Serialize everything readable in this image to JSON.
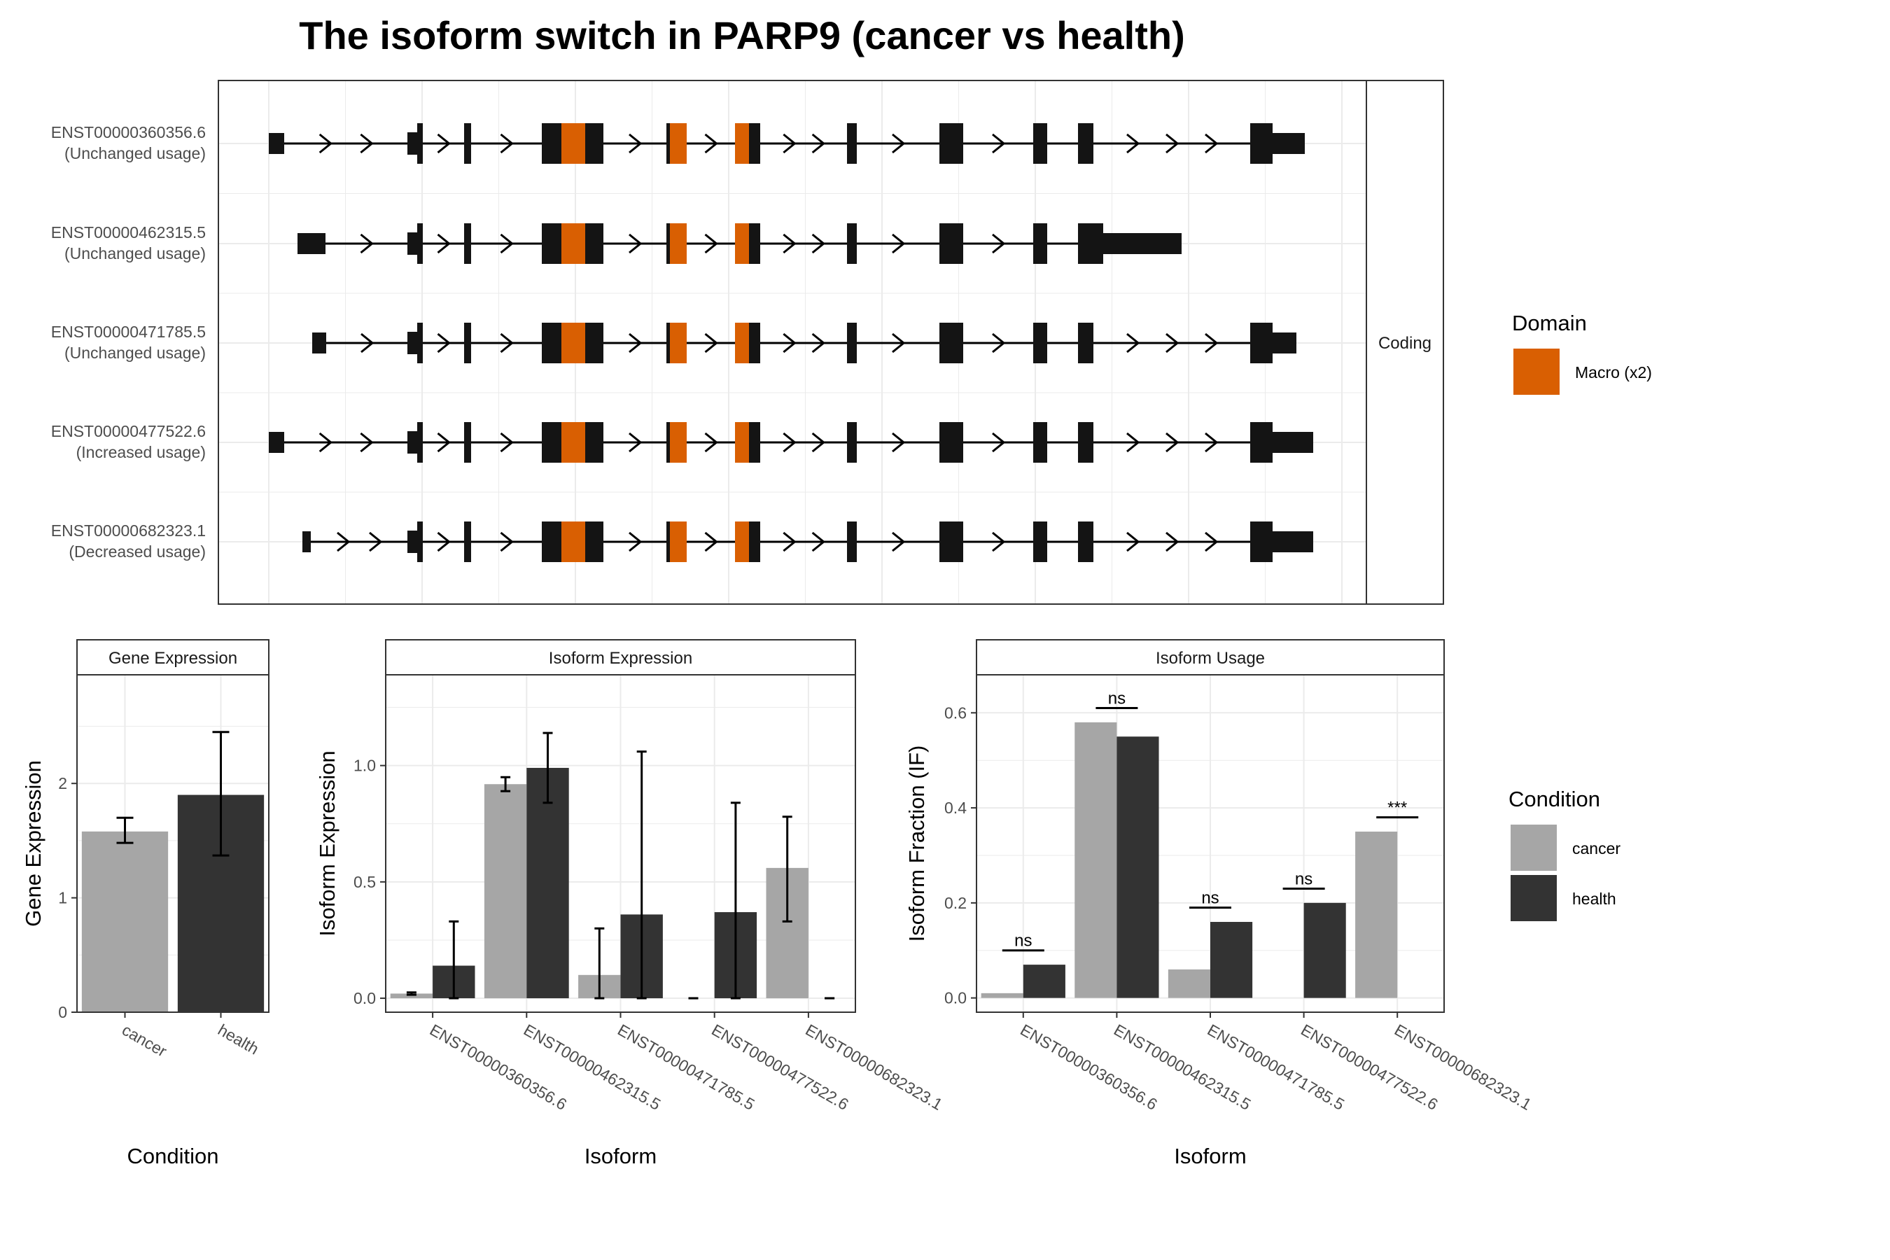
{
  "title": "The isoform switch in PARP9 (cancer vs health)",
  "colors": {
    "cancer": "#a6a6a6",
    "health": "#333333",
    "exon": "#141414",
    "domain": "#d95f02",
    "grid": "#ebebeb",
    "border": "#333333"
  },
  "structure": {
    "facet_label": "Coding",
    "isoforms": [
      {
        "id": "ENST00000360356.6",
        "usage": "(Unchanged usage)"
      },
      {
        "id": "ENST00000462315.5",
        "usage": "(Unchanged usage)"
      },
      {
        "id": "ENST00000471785.5",
        "usage": "(Unchanged usage)"
      },
      {
        "id": "ENST00000477522.6",
        "usage": "(Increased usage)"
      },
      {
        "id": "ENST00000682323.1",
        "usage": "(Decreased usage)"
      }
    ],
    "domain_legend": {
      "title": "Domain",
      "entries": [
        "Macro (x2)"
      ]
    }
  },
  "condition_legend": {
    "title": "Condition",
    "entries": [
      "cancer",
      "health"
    ]
  },
  "chart_data": [
    {
      "type": "bar",
      "strip": "Gene Expression",
      "xlabel": "Condition",
      "ylabel": "Gene Expression",
      "categories": [
        "cancer",
        "health"
      ],
      "values": [
        1.58,
        1.9
      ],
      "error_low": [
        1.48,
        1.37
      ],
      "error_high": [
        1.7,
        2.45
      ],
      "ylim": [
        0,
        2.95
      ],
      "yticks": [
        0,
        1,
        2
      ]
    },
    {
      "type": "bar",
      "strip": "Isoform Expression",
      "xlabel": "Isoform",
      "ylabel": "Isoform Expression",
      "categories": [
        "ENST00000360356.6",
        "ENST00000462315.5",
        "ENST00000471785.5",
        "ENST00000477522.6",
        "ENST00000682323.1"
      ],
      "series": [
        {
          "name": "cancer",
          "values": [
            0.02,
            0.92,
            0.1,
            0.0,
            0.56
          ],
          "error_low": [
            0.015,
            0.89,
            0.0,
            0.0,
            0.33
          ],
          "error_high": [
            0.025,
            0.95,
            0.3,
            0.0,
            0.78
          ]
        },
        {
          "name": "health",
          "values": [
            0.14,
            0.99,
            0.36,
            0.37,
            0.0
          ],
          "error_low": [
            0.0,
            0.84,
            0.0,
            0.0,
            0.0
          ],
          "error_high": [
            0.33,
            1.14,
            1.06,
            0.84,
            0.0
          ]
        }
      ],
      "ylim": [
        -0.06,
        1.39
      ],
      "yticks": [
        0.0,
        0.5,
        1.0
      ]
    },
    {
      "type": "bar",
      "strip": "Isoform Usage",
      "xlabel": "Isoform",
      "ylabel": "Isoform Fraction (IF)",
      "categories": [
        "ENST00000360356.6",
        "ENST00000462315.5",
        "ENST00000471785.5",
        "ENST00000477522.6",
        "ENST00000682323.1"
      ],
      "series": [
        {
          "name": "cancer",
          "values": [
            0.01,
            0.58,
            0.06,
            0.0,
            0.35
          ]
        },
        {
          "name": "health",
          "values": [
            0.07,
            0.55,
            0.16,
            0.2,
            0.0
          ]
        }
      ],
      "significance": [
        {
          "label": "ns",
          "level": 0.1
        },
        {
          "label": "ns",
          "level": 0.61
        },
        {
          "label": "ns",
          "level": 0.19
        },
        {
          "label": "ns",
          "level": 0.23
        },
        {
          "label": "***",
          "level": 0.38
        }
      ],
      "ylim": [
        -0.03,
        0.68
      ],
      "yticks": [
        0.0,
        0.2,
        0.4,
        0.6
      ]
    }
  ]
}
